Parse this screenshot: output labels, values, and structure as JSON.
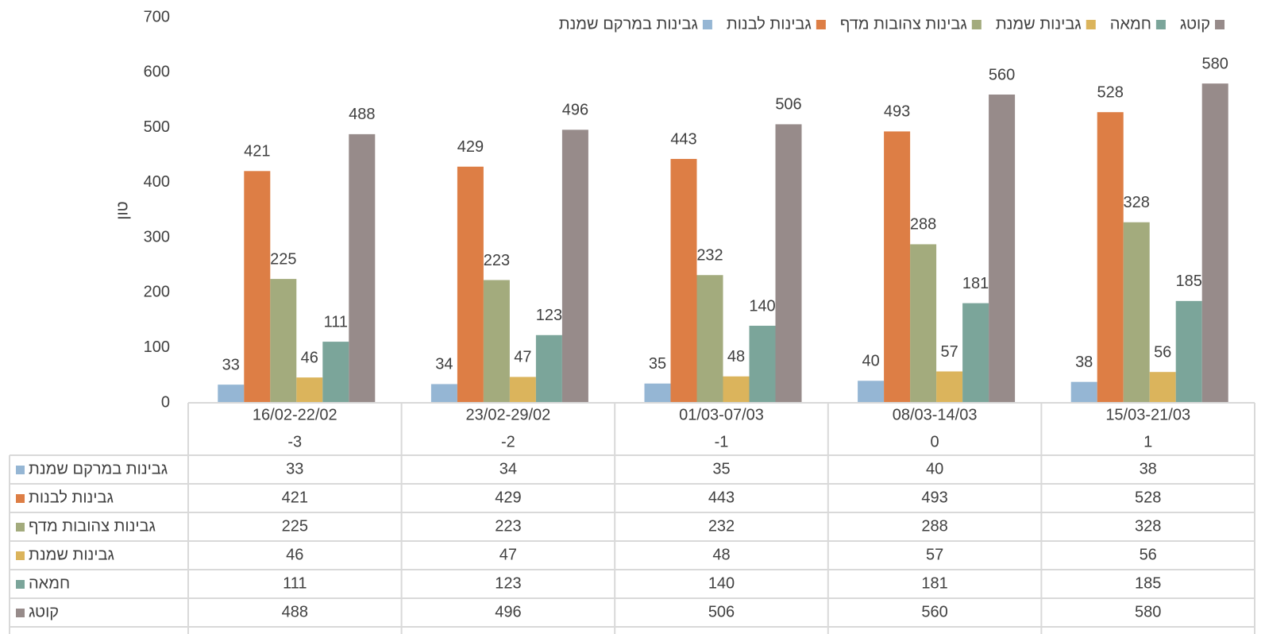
{
  "chart_data": {
    "type": "bar",
    "y_label": "טון",
    "categories": [
      "16/02-22/02",
      "23/02-29/02",
      "01/03-07/03",
      "08/03-14/03",
      "15/03-21/03"
    ],
    "week_numbers": [
      "-3",
      "-2",
      "-1",
      "0",
      "1"
    ],
    "series": [
      {
        "name": "גבינות במרקם שמנת",
        "color": "#95b6d4",
        "values": [
          33,
          34,
          35,
          40,
          38
        ]
      },
      {
        "name": "גבינות לבנות",
        "color": "#dd7e45",
        "values": [
          421,
          429,
          443,
          493,
          528
        ]
      },
      {
        "name": "גבינות צהובות מדף",
        "color": "#a3ab7d",
        "values": [
          225,
          223,
          232,
          288,
          328
        ]
      },
      {
        "name": "גבינות שמנת",
        "color": "#dbb45c",
        "values": [
          46,
          47,
          48,
          57,
          56
        ]
      },
      {
        "name": "חמאה",
        "color": "#7ba59a",
        "values": [
          111,
          123,
          140,
          181,
          185
        ]
      },
      {
        "name": "קוטג",
        "color": "#978b8a",
        "values": [
          488,
          496,
          506,
          560,
          580
        ]
      }
    ],
    "ylim": [
      0,
      700
    ],
    "yticks": [
      0,
      100,
      200,
      300,
      400,
      500,
      600,
      700
    ],
    "legend": "top",
    "data_table": true
  }
}
